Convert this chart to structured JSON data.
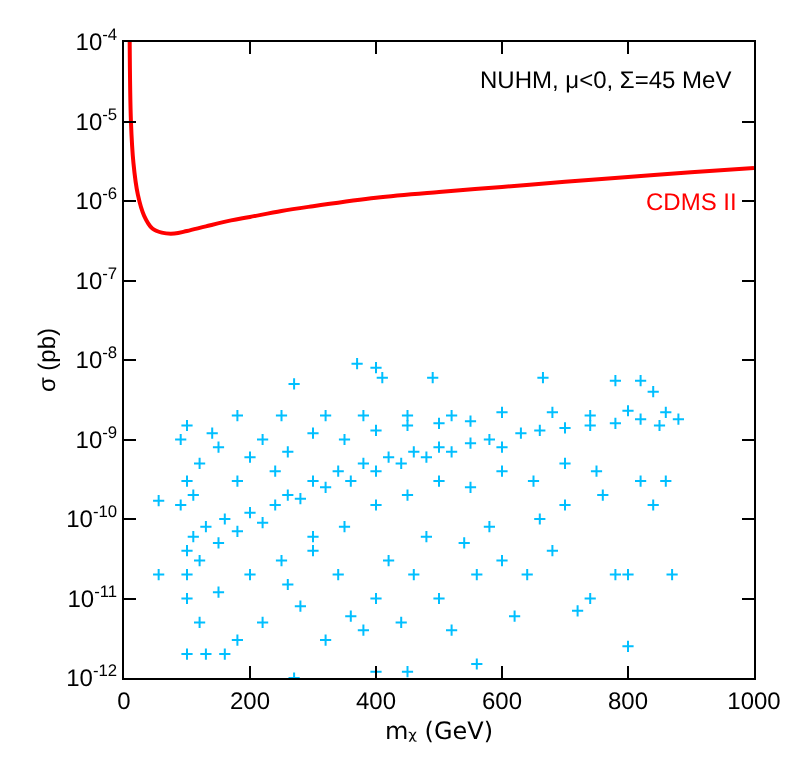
{
  "chart_data": {
    "type": "scatter",
    "xlabel": "mᵪ (GeV)",
    "ylabel": "σ (pb)",
    "annotations": [
      "NUHM, μ<0, Σ=45 MeV"
    ],
    "log": "y",
    "legend": false,
    "xlim": [
      0,
      1000
    ],
    "xticks": [
      0,
      200,
      400,
      600,
      800,
      1000
    ],
    "ylim": [
      1e-12,
      0.0001
    ],
    "yticks": [
      {
        "value": 1e-12,
        "label": "10$^{-12}$"
      },
      {
        "value": 1e-11,
        "label": "10$^{-11}$"
      },
      {
        "value": 1e-10,
        "label": "10$^{-10}$"
      },
      {
        "value": 1e-09,
        "label": "10$^{-9}$"
      },
      {
        "value": 1e-08,
        "label": "10$^{-8}$"
      },
      {
        "value": 1e-07,
        "label": "10$^{-7}$"
      },
      {
        "value": 1e-06,
        "label": "10$^{-6}$"
      },
      {
        "value": 1e-05,
        "label": "10$^{-5}$"
      },
      {
        "value": 0.0001,
        "label": "10$^{-4}$"
      }
    ],
    "series": [
      {
        "marker": "cross",
        "color": "#00bfff",
        "x": [
          55,
          55,
          370,
          400,
          410,
          270,
          490,
          665,
          780,
          820,
          840,
          870,
          800,
          100,
          130,
          160,
          270,
          400,
          450,
          560,
          180,
          250,
          320,
          380,
          450,
          520,
          600,
          680,
          740,
          800,
          860,
          880,
          100,
          90,
          140,
          100,
          100,
          110,
          120,
          130,
          150,
          160,
          180,
          200,
          220,
          240,
          260,
          280,
          300,
          320,
          340,
          360,
          380,
          400,
          420,
          440,
          460,
          480,
          500,
          520,
          550,
          580,
          600,
          630,
          660,
          700,
          740,
          780,
          820,
          850,
          120,
          150,
          200,
          220,
          260,
          300,
          350,
          400,
          450,
          500,
          550,
          100,
          90,
          110,
          180,
          240,
          100,
          120,
          150,
          200,
          220,
          250,
          280,
          300,
          320,
          340,
          360,
          380,
          400,
          420,
          440,
          460,
          480,
          500,
          520,
          540,
          560,
          580,
          600,
          620,
          640,
          660,
          680,
          700,
          720,
          740,
          760,
          780,
          800,
          820,
          840,
          860,
          400,
          450,
          500,
          550,
          600,
          650,
          700,
          750,
          350,
          300,
          260,
          180
        ],
        "values": [
          1.7e-10,
          2e-11,
          9e-09,
          8e-09,
          6e-09,
          5e-09,
          6e-09,
          6e-09,
          5.5e-09,
          5.5e-09,
          4e-09,
          2e-11,
          2.5e-12,
          2e-12,
          2e-12,
          2e-12,
          1e-12,
          1.2e-12,
          1.2e-12,
          1.5e-12,
          2e-09,
          2e-09,
          2e-09,
          2e-09,
          2e-09,
          2e-09,
          2.2e-09,
          2.2e-09,
          2e-09,
          2.3e-09,
          2.2e-09,
          1.8e-09,
          1.5e-09,
          1e-09,
          1.2e-09,
          4e-11,
          2e-11,
          6e-11,
          3e-11,
          8e-11,
          5e-11,
          1e-10,
          7e-11,
          1.2e-10,
          9e-11,
          1.5e-10,
          2e-10,
          1.8e-10,
          3e-10,
          2.5e-10,
          4e-10,
          3e-10,
          5e-10,
          4e-10,
          6e-10,
          5e-10,
          7e-10,
          6e-10,
          8e-10,
          7e-10,
          9e-10,
          1e-09,
          8e-10,
          1.2e-09,
          1.3e-09,
          1.4e-09,
          1.5e-09,
          1.6e-09,
          1.8e-09,
          1.5e-09,
          5e-10,
          8e-10,
          6e-10,
          1e-09,
          7e-10,
          1.2e-09,
          1e-09,
          1.3e-09,
          1.5e-09,
          1.6e-09,
          1.7e-09,
          3e-10,
          1.5e-10,
          2e-10,
          3e-10,
          4e-10,
          1e-11,
          5e-12,
          1.2e-11,
          2e-11,
          5e-12,
          3e-11,
          8e-12,
          4e-11,
          3e-12,
          2e-11,
          6e-12,
          4e-12,
          1e-11,
          3e-11,
          5e-12,
          2e-11,
          6e-11,
          1e-11,
          4e-12,
          5e-11,
          2e-11,
          8e-11,
          3e-11,
          6e-12,
          2e-11,
          1e-10,
          4e-11,
          1.5e-10,
          7e-12,
          1e-11,
          2e-10,
          2e-11,
          2e-11,
          3e-10,
          1.5e-10,
          3e-10,
          1.5e-10,
          2e-10,
          3e-10,
          2.5e-10,
          4e-10,
          3e-10,
          5e-10,
          4e-10,
          8e-11,
          6e-11,
          1.5e-11,
          3e-12
        ]
      },
      {
        "type": "line",
        "name": "CDMS II",
        "color": "#ff0000",
        "line_style": "solid",
        "marker": "none",
        "x": [
          9,
          11,
          15,
          22,
          32,
          45,
          60,
          80,
          100,
          130,
          170,
          200,
          250,
          300,
          400,
          500,
          600,
          700,
          800,
          900,
          1000
        ],
        "values": [
          0.0001,
          1e-05,
          3e-06,
          1.2e-06,
          6.5e-07,
          4.5e-07,
          4e-07,
          3.9e-07,
          4.2e-07,
          4.8e-07,
          5.7e-07,
          6.3e-07,
          7.5e-07,
          8.6e-07,
          1.1e-06,
          1.3e-06,
          1.5e-06,
          1.75e-06,
          2e-06,
          2.3e-06,
          2.6e-06
        ]
      }
    ]
  }
}
